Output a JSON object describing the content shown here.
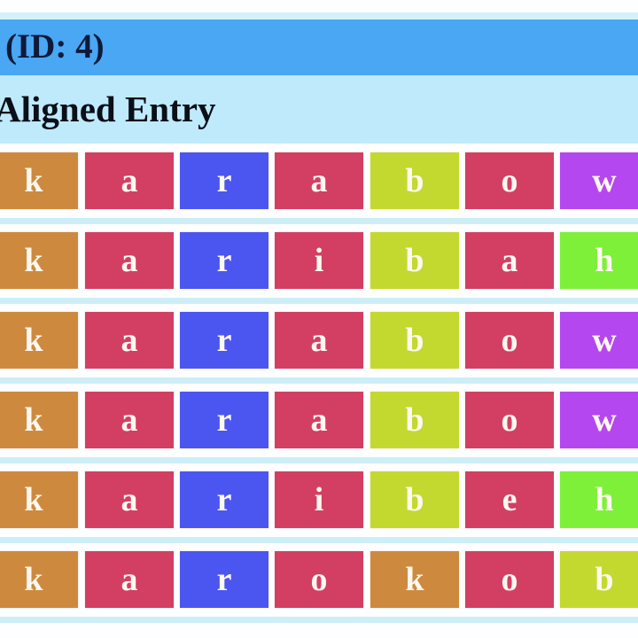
{
  "header": {
    "title": "(ID: 4)"
  },
  "subheader": {
    "title": "Aligned Entry"
  },
  "alignment": {
    "rows": [
      [
        "k",
        "a",
        "r",
        "a",
        "b",
        "o",
        "w"
      ],
      [
        "k",
        "a",
        "r",
        "i",
        "b",
        "a",
        "h"
      ],
      [
        "k",
        "a",
        "r",
        "a",
        "b",
        "o",
        "w"
      ],
      [
        "k",
        "a",
        "r",
        "a",
        "b",
        "o",
        "w"
      ],
      [
        "k",
        "a",
        "r",
        "i",
        "b",
        "e",
        "h"
      ],
      [
        "k",
        "a",
        "r",
        "o",
        "k",
        "o",
        "b"
      ]
    ],
    "colors": {
      "k": "#cd8a3e",
      "a": "#d23f62",
      "i": "#d23f62",
      "o": "#d23f62",
      "e": "#d23f62",
      "r": "#4b55f0",
      "b": "#c3d92f",
      "w": "#b447f0",
      "h": "#7ef03a"
    }
  }
}
